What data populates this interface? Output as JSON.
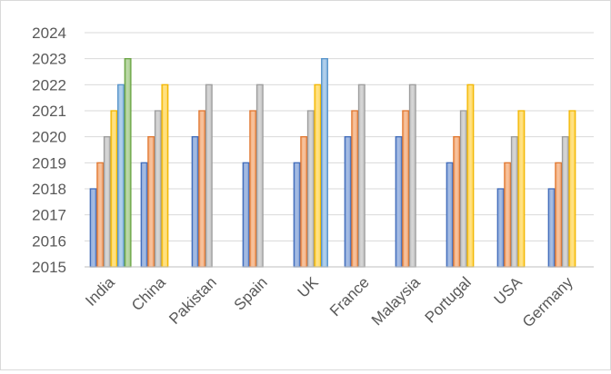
{
  "chart_data": {
    "type": "bar",
    "title": "",
    "xlabel": "",
    "ylabel": "",
    "ylim": [
      2015,
      2024
    ],
    "yticks": [
      2015,
      2016,
      2017,
      2018,
      2019,
      2020,
      2021,
      2022,
      2023,
      2024
    ],
    "grid": true,
    "legend": "none",
    "categories": [
      "India",
      "China",
      "Pakistan",
      "Spain",
      "UK",
      "France",
      "Malaysia",
      "Portugal",
      "USA",
      "Germany"
    ],
    "series": [
      {
        "color": "#4472c4",
        "values": [
          2018,
          2019,
          2020,
          2019,
          2019,
          2020,
          2020,
          2019,
          2018,
          2018
        ]
      },
      {
        "color": "#ed7d31",
        "values": [
          2019,
          2020,
          2021,
          2021,
          2020,
          2021,
          2021,
          2020,
          2019,
          2019
        ]
      },
      {
        "color": "#a5a5a5",
        "values": [
          2020,
          2021,
          2022,
          2022,
          2021,
          2022,
          2022,
          2021,
          2020,
          2020
        ]
      },
      {
        "color": "#ffc000",
        "values": [
          2021,
          2022,
          null,
          null,
          2022,
          null,
          null,
          2022,
          2021,
          2021
        ]
      },
      {
        "color": "#5b9bd5",
        "values": [
          2022,
          null,
          null,
          null,
          2023,
          null,
          null,
          null,
          null,
          null
        ]
      },
      {
        "color": "#70ad47",
        "values": [
          2023,
          null,
          null,
          null,
          null,
          null,
          null,
          null,
          null,
          null
        ]
      }
    ]
  }
}
